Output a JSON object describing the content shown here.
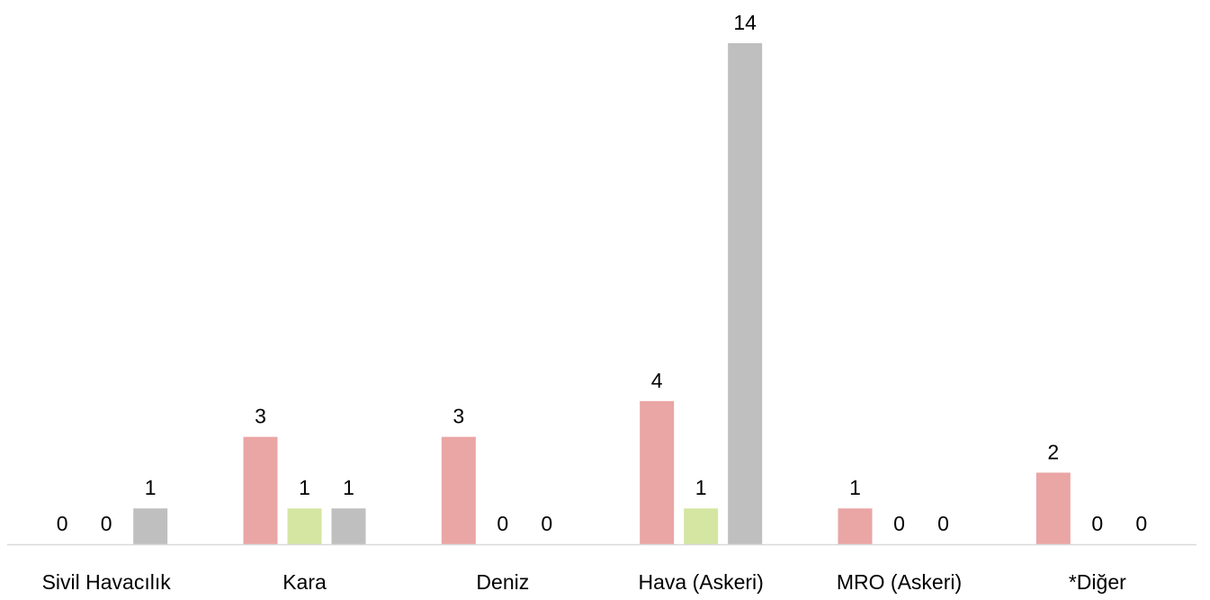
{
  "chart_data": {
    "type": "bar",
    "categories": [
      "Sivil Havacılık",
      "Kara",
      "Deniz",
      "Hava (Askeri)",
      "MRO (Askeri)",
      "*Diğer"
    ],
    "series": [
      {
        "values": [
          0,
          3,
          3,
          4,
          1,
          2
        ],
        "color": "#eaa5a5"
      },
      {
        "values": [
          0,
          1,
          0,
          1,
          0,
          0
        ],
        "color": "#d4e6a2"
      },
      {
        "values": [
          1,
          1,
          0,
          14,
          0,
          0
        ],
        "color": "#bfbfbf"
      }
    ],
    "ylim": [
      0,
      14
    ],
    "grid": false,
    "legend": "none",
    "data_labels": true,
    "axis_color": "#d9d9d9"
  }
}
